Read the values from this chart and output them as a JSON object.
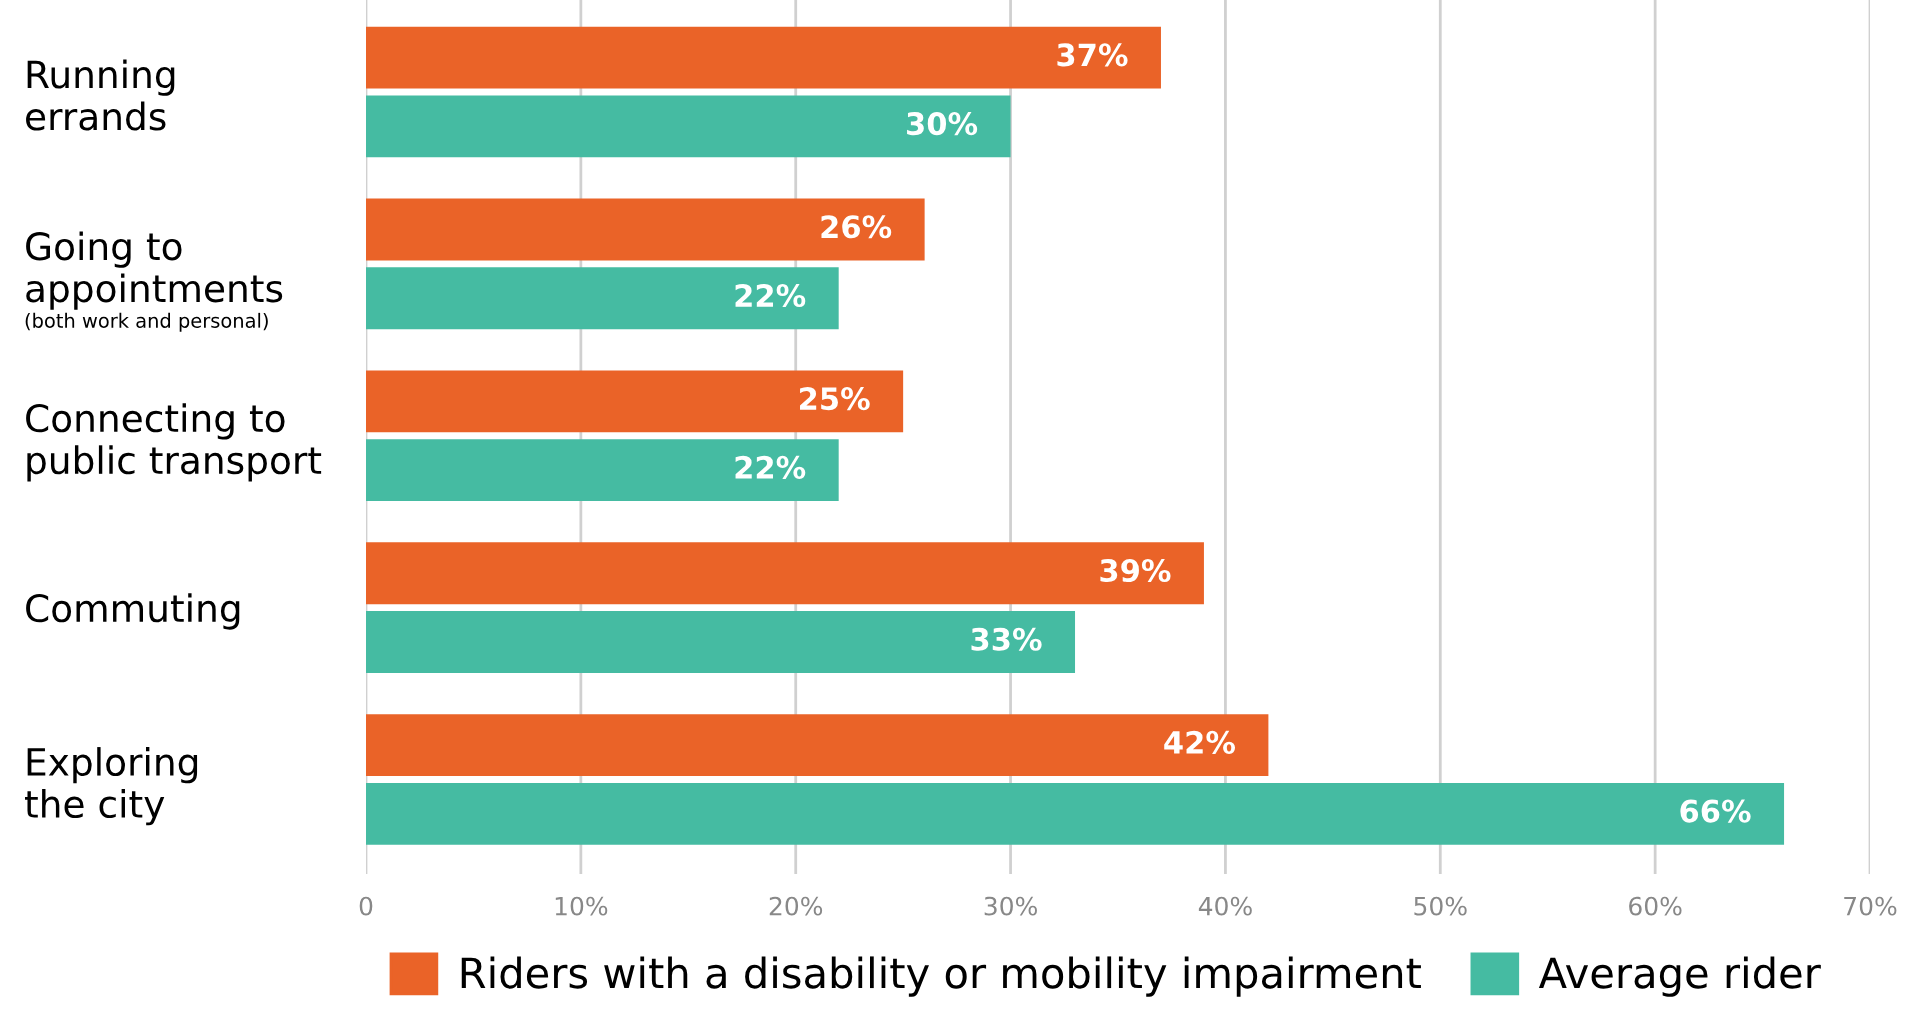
{
  "chart_data": {
    "type": "bar",
    "orientation": "horizontal",
    "categories": [
      "Running\nerrands",
      "Going to\nappointments",
      "Connecting to\npublic transport",
      "Commuting",
      "Exploring\nthe city"
    ],
    "series": [
      {
        "name": "Riders with a disability or mobility impairment",
        "color": "#ea6328",
        "values": [
          37,
          26,
          25,
          39,
          42
        ],
        "value_labels": [
          "37%",
          "26%",
          "25%",
          "39%",
          "42%"
        ]
      },
      {
        "name": "Average rider",
        "color": "#45bba2",
        "values": [
          30,
          22,
          22,
          33,
          66
        ],
        "value_labels": [
          "30%",
          "22%",
          "22%",
          "33%",
          "66%"
        ]
      }
    ],
    "xlim": [
      0,
      70
    ],
    "xticks": [
      0,
      {
        "value": 10,
        "label": "10%"
      },
      {
        "value": 20,
        "label": "20%"
      },
      {
        "value": 30,
        "label": "30%"
      },
      {
        "value": 40,
        "label": "40%"
      },
      {
        "value": 50,
        "label": "50%"
      },
      {
        "value": 60,
        "label": "60%"
      },
      {
        "value": 70,
        "label": "70%"
      }
    ],
    "grid": "x",
    "legend": "bottom",
    "annotations": [
      "(both work and personal)"
    ]
  }
}
